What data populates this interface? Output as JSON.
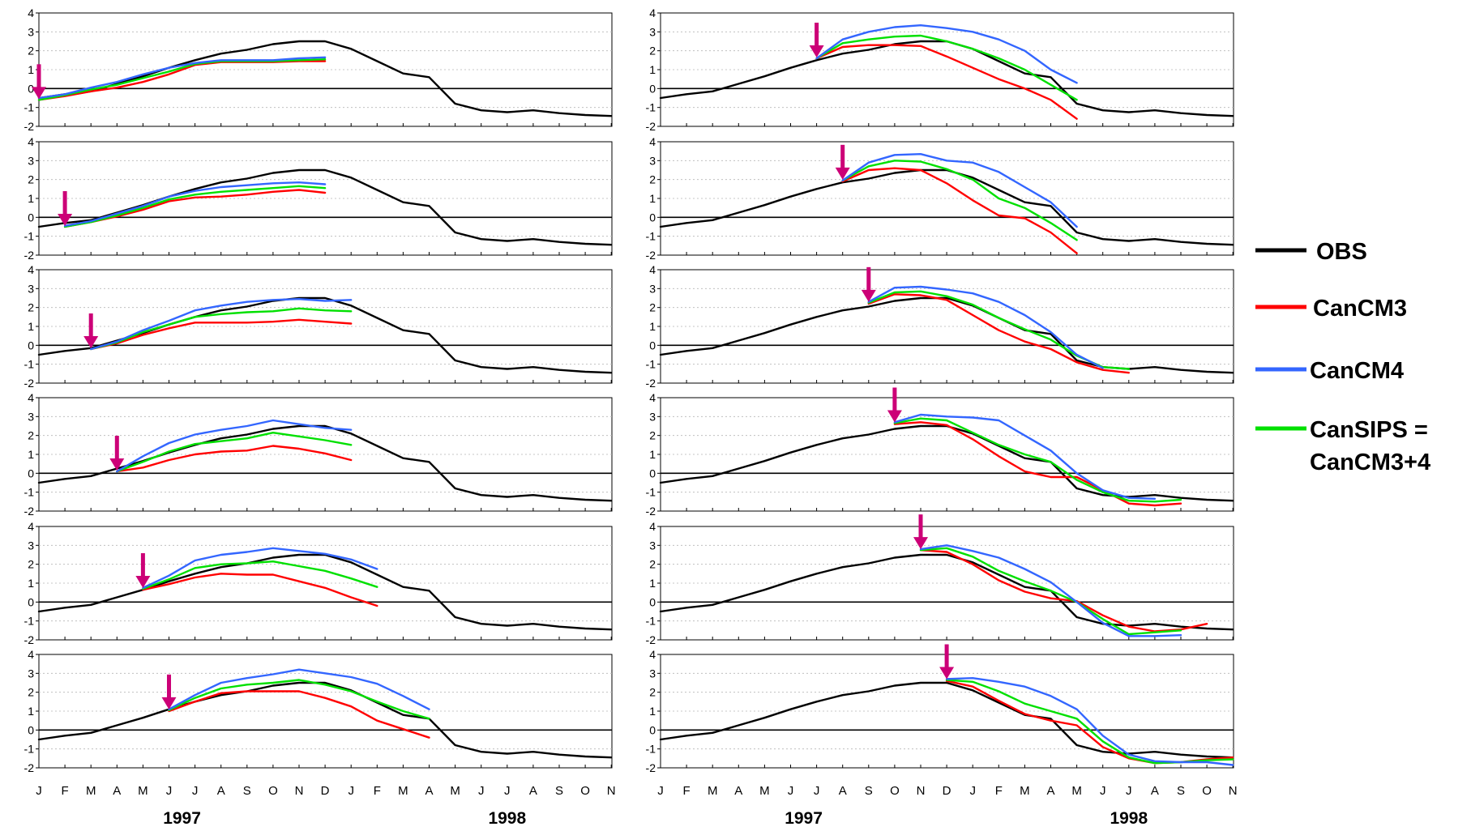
{
  "chart_data": {
    "type": "line",
    "panels": "12 small-multiple line panels, 6 rows x 2 columns; each shows OBS and three forecast runs started at the month marked by the arrow",
    "ylim": [
      -2,
      4
    ],
    "yticks": [
      "4",
      "3",
      "2",
      "1",
      "0",
      "-1",
      "-2"
    ],
    "grid": "horizontal dotted gridlines",
    "x_months": [
      "J",
      "F",
      "M",
      "A",
      "M",
      "J",
      "J",
      "A",
      "S",
      "O",
      "N",
      "D",
      "J",
      "F",
      "M",
      "A",
      "M",
      "J",
      "J",
      "A",
      "S",
      "O",
      "N"
    ],
    "year_labels": [
      "1997",
      "1998"
    ],
    "legend": [
      {
        "name": "OBS",
        "color": "#000000"
      },
      {
        "name": "CanCM3",
        "color": "#ff0000"
      },
      {
        "name": "CanCM4",
        "color": "#3366ff"
      },
      {
        "name": "CanSIPS =",
        "color": "#00e000",
        "line2": "CanCM3+4"
      }
    ],
    "colors": {
      "OBS": "#000000",
      "CanCM3": "#ff0000",
      "CanCM4": "#3366ff",
      "CanSIPS": "#00e000",
      "arrow": "#cc0077"
    },
    "obs": [
      -0.5,
      -0.3,
      -0.15,
      0.25,
      0.65,
      1.1,
      1.5,
      1.85,
      2.05,
      2.35,
      2.5,
      2.5,
      2.1,
      1.45,
      0.8,
      0.6,
      -0.8,
      -1.15,
      -1.25,
      -1.15,
      -1.3,
      -1.4,
      -1.45
    ],
    "forecasts": [
      {
        "start": 0,
        "CanCM3": [
          -0.6,
          -0.4,
          -0.15,
          0.05,
          0.35,
          0.75,
          1.25,
          1.4,
          1.4,
          1.4,
          1.45,
          1.45
        ],
        "CanCM4": [
          -0.5,
          -0.3,
          0.05,
          0.35,
          0.75,
          1.1,
          1.35,
          1.5,
          1.5,
          1.5,
          1.6,
          1.65
        ],
        "CanSIPS": [
          -0.6,
          -0.35,
          -0.05,
          0.2,
          0.55,
          0.9,
          1.3,
          1.45,
          1.45,
          1.45,
          1.5,
          1.55
        ]
      },
      {
        "start": 1,
        "CanCM3": [
          -0.5,
          -0.25,
          0.05,
          0.4,
          0.85,
          1.05,
          1.1,
          1.2,
          1.35,
          1.45,
          1.3
        ],
        "CanCM4": [
          -0.45,
          -0.2,
          0.2,
          0.6,
          1.1,
          1.4,
          1.6,
          1.7,
          1.8,
          1.85,
          1.75
        ],
        "CanSIPS": [
          -0.5,
          -0.25,
          0.1,
          0.5,
          0.95,
          1.2,
          1.35,
          1.45,
          1.55,
          1.65,
          1.55
        ]
      },
      {
        "start": 2,
        "CanCM3": [
          -0.2,
          0.1,
          0.55,
          0.9,
          1.2,
          1.2,
          1.2,
          1.25,
          1.35,
          1.25,
          1.15
        ],
        "CanCM4": [
          -0.2,
          0.2,
          0.8,
          1.3,
          1.85,
          2.1,
          2.3,
          2.4,
          2.45,
          2.35,
          2.4
        ],
        "CanSIPS": [
          -0.2,
          0.15,
          0.7,
          1.1,
          1.5,
          1.65,
          1.75,
          1.8,
          1.95,
          1.85,
          1.8
        ]
      },
      {
        "start": 3,
        "CanCM3": [
          0.1,
          0.3,
          0.7,
          1.0,
          1.15,
          1.2,
          1.45,
          1.3,
          1.05,
          0.7
        ],
        "CanCM4": [
          0.1,
          0.9,
          1.6,
          2.05,
          2.3,
          2.5,
          2.8,
          2.6,
          2.4,
          2.3
        ],
        "CanSIPS": [
          0.1,
          0.6,
          1.15,
          1.55,
          1.7,
          1.85,
          2.15,
          1.95,
          1.75,
          1.5
        ]
      },
      {
        "start": 4,
        "CanCM3": [
          0.65,
          0.95,
          1.3,
          1.5,
          1.45,
          1.45,
          1.1,
          0.75,
          0.25,
          -0.2
        ],
        "CanCM4": [
          0.75,
          1.4,
          2.2,
          2.5,
          2.65,
          2.85,
          2.7,
          2.55,
          2.25,
          1.75
        ],
        "CanSIPS": [
          0.7,
          1.2,
          1.8,
          2.0,
          2.05,
          2.15,
          1.9,
          1.65,
          1.25,
          0.8
        ]
      },
      {
        "start": 5,
        "CanCM3": [
          1.0,
          1.5,
          1.95,
          2.05,
          2.05,
          2.05,
          1.7,
          1.25,
          0.5,
          0.05,
          -0.4
        ],
        "CanCM4": [
          1.1,
          1.85,
          2.5,
          2.75,
          2.95,
          3.2,
          3.0,
          2.8,
          2.45,
          1.8,
          1.1
        ],
        "CanSIPS": [
          1.05,
          1.7,
          2.2,
          2.4,
          2.5,
          2.65,
          2.4,
          2.05,
          1.5,
          1.0,
          0.6
        ]
      },
      {
        "start": 6,
        "CanCM3": [
          1.6,
          2.2,
          2.3,
          2.3,
          2.25,
          1.7,
          1.1,
          0.5,
          0.0,
          -0.6,
          -1.6
        ],
        "CanCM4": [
          1.6,
          2.6,
          3.0,
          3.25,
          3.35,
          3.2,
          3.0,
          2.6,
          2.0,
          1.0,
          0.3
        ],
        "CanSIPS": [
          1.6,
          2.4,
          2.6,
          2.75,
          2.8,
          2.5,
          2.1,
          1.6,
          1.0,
          0.2,
          -0.6
        ]
      },
      {
        "start": 7,
        "CanCM3": [
          1.9,
          2.5,
          2.6,
          2.5,
          1.8,
          0.9,
          0.1,
          -0.05,
          -0.8,
          -1.9
        ],
        "CanCM4": [
          1.95,
          2.9,
          3.3,
          3.35,
          3.0,
          2.9,
          2.4,
          1.6,
          0.8,
          -0.5
        ],
        "CanSIPS": [
          1.95,
          2.7,
          3.0,
          2.95,
          2.55,
          2.0,
          1.0,
          0.5,
          -0.3,
          -1.2
        ]
      },
      {
        "start": 8,
        "CanCM3": [
          2.2,
          2.7,
          2.65,
          2.4,
          1.6,
          0.8,
          0.2,
          -0.2,
          -0.9,
          -1.3,
          -1.45
        ],
        "CanCM4": [
          2.3,
          3.05,
          3.1,
          2.95,
          2.75,
          2.3,
          1.6,
          0.7,
          -0.5,
          -1.2
        ],
        "CanSIPS": [
          2.25,
          2.8,
          2.85,
          2.6,
          2.15,
          1.45,
          0.85,
          0.3,
          -0.55,
          -1.15,
          -1.25
        ]
      },
      {
        "start": 9,
        "CanCM3": [
          2.6,
          2.7,
          2.55,
          1.8,
          0.9,
          0.1,
          -0.2,
          -0.2,
          -0.9,
          -1.6,
          -1.7,
          -1.6
        ],
        "CanCM4": [
          2.7,
          3.1,
          3.0,
          2.95,
          2.8,
          2.0,
          1.2,
          0.0,
          -0.9,
          -1.3,
          -1.35
        ],
        "CanSIPS": [
          2.65,
          2.9,
          2.8,
          2.15,
          1.5,
          1.0,
          0.6,
          -0.35,
          -1.0,
          -1.45,
          -1.5,
          -1.4
        ]
      },
      {
        "start": 10,
        "CanCM3": [
          2.75,
          2.65,
          2.0,
          1.15,
          0.55,
          0.2,
          0.05,
          -0.7,
          -1.3,
          -1.55,
          -1.45,
          -1.15
        ],
        "CanCM4": [
          2.8,
          3.0,
          2.7,
          2.35,
          1.75,
          1.05,
          0.0,
          -1.1,
          -1.8,
          -1.8,
          -1.75
        ],
        "CanSIPS": [
          2.75,
          2.85,
          2.4,
          1.65,
          1.1,
          0.6,
          0.0,
          -0.9,
          -1.7,
          -1.6,
          -1.5
        ]
      },
      {
        "start": 11,
        "CanCM3": [
          2.6,
          2.3,
          1.55,
          0.85,
          0.5,
          0.25,
          -0.9,
          -1.5,
          -1.75,
          -1.7,
          -1.55,
          -1.45
        ],
        "CanCM4": [
          2.7,
          2.75,
          2.55,
          2.3,
          1.8,
          1.1,
          -0.3,
          -1.3,
          -1.65,
          -1.7,
          -1.7,
          -1.85
        ],
        "CanSIPS": [
          2.65,
          2.55,
          2.05,
          1.4,
          1.0,
          0.6,
          -0.6,
          -1.45,
          -1.75,
          -1.7,
          -1.6,
          -1.55
        ]
      }
    ]
  }
}
